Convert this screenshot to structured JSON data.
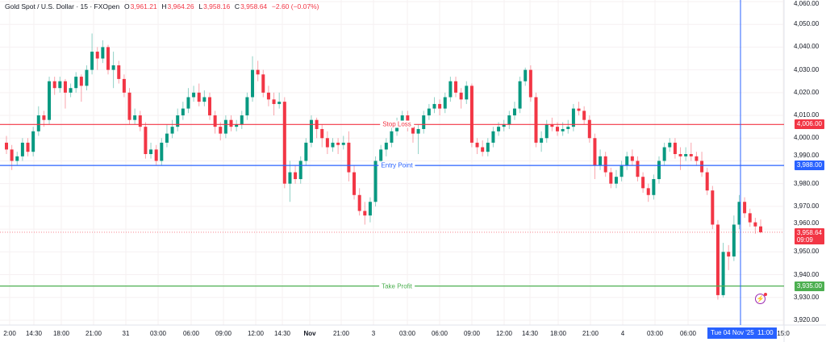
{
  "header": {
    "symbol": "Gold Spot / U.S. Dollar · 15 · FXOpen",
    "o_label": "O",
    "o": "3,961.21",
    "h_label": "H",
    "h": "3,964.26",
    "l_label": "L",
    "l": "3,958.16",
    "c_label": "C",
    "c": "3,958.64",
    "change": "−2.60 (−0.07%)"
  },
  "colors": {
    "up": "#089981",
    "down": "#f23645",
    "stop_loss": "#f23645",
    "entry": "#2962ff",
    "take_profit": "#4caf50",
    "crosshair": "#2962ff"
  },
  "levels": {
    "stop_loss": {
      "label": "Stop Loss",
      "price": 4006,
      "tag": "4,006.00"
    },
    "entry": {
      "label": "Entry Point",
      "price": 3988,
      "tag": "3,988.00"
    },
    "take_profit": {
      "label": "Take Profit",
      "price": 3935,
      "tag": "3,935.00"
    },
    "last": {
      "price": 3958.64,
      "tag": "3,958.64",
      "countdown": "09:09"
    }
  },
  "crosshair": {
    "date": "Tue 04 Nov '25",
    "time": "11:00"
  },
  "icons": {
    "alert": "lightning-icon"
  },
  "chart_data": {
    "type": "candlestick",
    "interval": "15",
    "ylim": [
      3917,
      4060
    ],
    "y_ticks": [
      "4,060.00",
      "4,050.00",
      "4,040.00",
      "4,030.00",
      "4,020.00",
      "4,010.00",
      "4,000.00",
      "3,990.00",
      "3,980.00",
      "3,970.00",
      "3,960.00",
      "3,950.00",
      "3,940.00",
      "3,930.00",
      "3,920.00"
    ],
    "y_tick_values": [
      4060,
      4050,
      4040,
      4030,
      4020,
      4010,
      4000,
      3990,
      3980,
      3970,
      3960,
      3950,
      3940,
      3930,
      3920
    ],
    "x_ticks": [
      "2:00",
      "14:30",
      "18:00",
      "21:00",
      "31",
      "03:00",
      "06:00",
      "09:00",
      "12:00",
      "14:30",
      "Nov",
      "21:00",
      "3",
      "03:00",
      "06:00",
      "09:00",
      "12:00",
      "14:30",
      "18:00",
      "21:00",
      "4",
      "03:00",
      "06:00",
      "15:0"
    ],
    "ohlc": [
      [
        3998,
        4001,
        3993,
        3995
      ],
      [
        3995,
        3997,
        3986,
        3990
      ],
      [
        3990,
        3994,
        3988,
        3992
      ],
      [
        3992,
        4000,
        3990,
        3998
      ],
      [
        3998,
        4000,
        3992,
        3994
      ],
      [
        3994,
        4005,
        3992,
        4003
      ],
      [
        4003,
        4014,
        4001,
        4010
      ],
      [
        4010,
        4012,
        4005,
        4008
      ],
      [
        4008,
        4027,
        4006,
        4025
      ],
      [
        4025,
        4027,
        4019,
        4022
      ],
      [
        4022,
        4027,
        4020,
        4025
      ],
      [
        4025,
        4026,
        4013,
        4020
      ],
      [
        4020,
        4024,
        4018,
        4022
      ],
      [
        4022,
        4029,
        4020,
        4027
      ],
      [
        4027,
        4028,
        4016,
        4023
      ],
      [
        4023,
        4032,
        4021,
        4030
      ],
      [
        4030,
        4046,
        4028,
        4038
      ],
      [
        4038,
        4040,
        4030,
        4035
      ],
      [
        4035,
        4043,
        4033,
        4040
      ],
      [
        4040,
        4041,
        4028,
        4030
      ],
      [
        4030,
        4038,
        4022,
        4032
      ],
      [
        4032,
        4034,
        4024,
        4026
      ],
      [
        4026,
        4028,
        4018,
        4020
      ],
      [
        4020,
        4022,
        4006,
        4008
      ],
      [
        4008,
        4013,
        4006,
        4010
      ],
      [
        4010,
        4012,
        4003,
        4005
      ],
      [
        4005,
        4007,
        3991,
        3993
      ],
      [
        3993,
        3998,
        3991,
        3995
      ],
      [
        3995,
        3997,
        3988,
        3990
      ],
      [
        3990,
        4000,
        3988,
        3998
      ],
      [
        3998,
        4006,
        3996,
        4002
      ],
      [
        4002,
        4008,
        4000,
        4005
      ],
      [
        4005,
        4013,
        4003,
        4010
      ],
      [
        4010,
        4016,
        4008,
        4013
      ],
      [
        4013,
        4022,
        4011,
        4018
      ],
      [
        4018,
        4023,
        4016,
        4020
      ],
      [
        4020,
        4024,
        4014,
        4016
      ],
      [
        4016,
        4021,
        4014,
        4018
      ],
      [
        4018,
        4020,
        4008,
        4010
      ],
      [
        4010,
        4012,
        4002,
        4005
      ],
      [
        4005,
        4007,
        3999,
        4002
      ],
      [
        4002,
        4010,
        4000,
        4008
      ],
      [
        4008,
        4010,
        4003,
        4005
      ],
      [
        4005,
        4008,
        4003,
        4006
      ],
      [
        4006,
        4012,
        4004,
        4010
      ],
      [
        4010,
        4020,
        4008,
        4018
      ],
      [
        4018,
        4036,
        4016,
        4030
      ],
      [
        4030,
        4034,
        4025,
        4028
      ],
      [
        4028,
        4030,
        4018,
        4020
      ],
      [
        4020,
        4023,
        4014,
        4017
      ],
      [
        4017,
        4020,
        4010,
        4015
      ],
      [
        4015,
        4020,
        4013,
        4016
      ],
      [
        4016,
        4018,
        3978,
        3980
      ],
      [
        3980,
        3990,
        3972,
        3985
      ],
      [
        3985,
        3988,
        3980,
        3982
      ],
      [
        3982,
        3992,
        3980,
        3990
      ],
      [
        3990,
        4000,
        3988,
        3998
      ],
      [
        3998,
        4010,
        3996,
        4008
      ],
      [
        4008,
        4009,
        4000,
        4004
      ],
      [
        4004,
        4006,
        3996,
        4000
      ],
      [
        4000,
        4003,
        3993,
        3996
      ],
      [
        3996,
        4000,
        3994,
        3998
      ],
      [
        3998,
        4000,
        3993,
        3997
      ],
      [
        3997,
        4001,
        3995,
        3998
      ],
      [
        3998,
        4003,
        3981,
        3985
      ],
      [
        3985,
        3988,
        3973,
        3975
      ],
      [
        3975,
        3978,
        3966,
        3968
      ],
      [
        3968,
        3972,
        3962,
        3966
      ],
      [
        3966,
        3974,
        3963,
        3972
      ],
      [
        3972,
        3992,
        3970,
        3990
      ],
      [
        3990,
        3997,
        3988,
        3995
      ],
      [
        3995,
        4000,
        3992,
        3998
      ],
      [
        3998,
        4005,
        3996,
        4003
      ],
      [
        4003,
        4009,
        4001,
        4007
      ],
      [
        4007,
        4012,
        4005,
        4010
      ],
      [
        4010,
        4012,
        4003,
        4005
      ],
      [
        4005,
        4007,
        3998,
        4002
      ],
      [
        4002,
        4006,
        3993,
        4004
      ],
      [
        4004,
        4012,
        4002,
        4010
      ],
      [
        4010,
        4015,
        4008,
        4013
      ],
      [
        4013,
        4018,
        4011,
        4015
      ],
      [
        4015,
        4017,
        4010,
        4013
      ],
      [
        4013,
        4020,
        4011,
        4018
      ],
      [
        4018,
        4027,
        4016,
        4025
      ],
      [
        4025,
        4027,
        4018,
        4020
      ],
      [
        4020,
        4022,
        4013,
        4017
      ],
      [
        4017,
        4025,
        4015,
        4023
      ],
      [
        4023,
        4024,
        3996,
        3998
      ],
      [
        3998,
        4000,
        3993,
        3996
      ],
      [
        3996,
        3999,
        3992,
        3994
      ],
      [
        3994,
        4000,
        3992,
        3998
      ],
      [
        3998,
        4005,
        3996,
        4003
      ],
      [
        4003,
        4007,
        4001,
        4005
      ],
      [
        4005,
        4008,
        4003,
        4006
      ],
      [
        4006,
        4012,
        4004,
        4010
      ],
      [
        4010,
        4016,
        4008,
        4013
      ],
      [
        4013,
        4027,
        4011,
        4025
      ],
      [
        4025,
        4031,
        4023,
        4030
      ],
      [
        4030,
        4032,
        4016,
        4018
      ],
      [
        4018,
        4020,
        3996,
        3998
      ],
      [
        3998,
        4003,
        3994,
        4000
      ],
      [
        4000,
        4008,
        3998,
        4006
      ],
      [
        4006,
        4009,
        4003,
        4005
      ],
      [
        4005,
        4007,
        4001,
        4003
      ],
      [
        4003,
        4007,
        4001,
        4004
      ],
      [
        4004,
        4008,
        4002,
        4005
      ],
      [
        4005,
        4015,
        4003,
        4013
      ],
      [
        4013,
        4016,
        4010,
        4012
      ],
      [
        4012,
        4014,
        4006,
        4008
      ],
      [
        4008,
        4010,
        3998,
        4000
      ],
      [
        4000,
        4002,
        3982,
        3988
      ],
      [
        3988,
        3995,
        3986,
        3992
      ],
      [
        3992,
        3994,
        3983,
        3985
      ],
      [
        3985,
        3987,
        3978,
        3980
      ],
      [
        3980,
        3986,
        3978,
        3983
      ],
      [
        3983,
        3990,
        3981,
        3988
      ],
      [
        3988,
        3994,
        3986,
        3992
      ],
      [
        3992,
        3995,
        3988,
        3990
      ],
      [
        3990,
        3992,
        3981,
        3983
      ],
      [
        3983,
        3985,
        3976,
        3978
      ],
      [
        3978,
        3980,
        3972,
        3975
      ],
      [
        3975,
        3984,
        3973,
        3982
      ],
      [
        3982,
        3992,
        3980,
        3990
      ],
      [
        3990,
        3998,
        3988,
        3996
      ],
      [
        3996,
        4000,
        3994,
        3998
      ],
      [
        3998,
        4000,
        3991,
        3993
      ],
      [
        3993,
        3996,
        3986,
        3992
      ],
      [
        3992,
        3996,
        3990,
        3993
      ],
      [
        3993,
        3998,
        3990,
        3992
      ],
      [
        3992,
        3994,
        3988,
        3990
      ],
      [
        3990,
        3994,
        3983,
        3985
      ],
      [
        3985,
        3987,
        3975,
        3977
      ],
      [
        3977,
        3979,
        3960,
        3962
      ],
      [
        3962,
        3964,
        3929,
        3931
      ],
      [
        3931,
        3954,
        3930,
        3950
      ],
      [
        3950,
        3953,
        3942,
        3948
      ],
      [
        3948,
        3966,
        3946,
        3962
      ],
      [
        3962,
        3975,
        3960,
        3972
      ],
      [
        3972,
        3974,
        3965,
        3967
      ],
      [
        3967,
        3969,
        3961,
        3963
      ],
      [
        3963,
        3965,
        3958,
        3961.21
      ],
      [
        3961.21,
        3964.26,
        3958.16,
        3958.64
      ]
    ]
  }
}
